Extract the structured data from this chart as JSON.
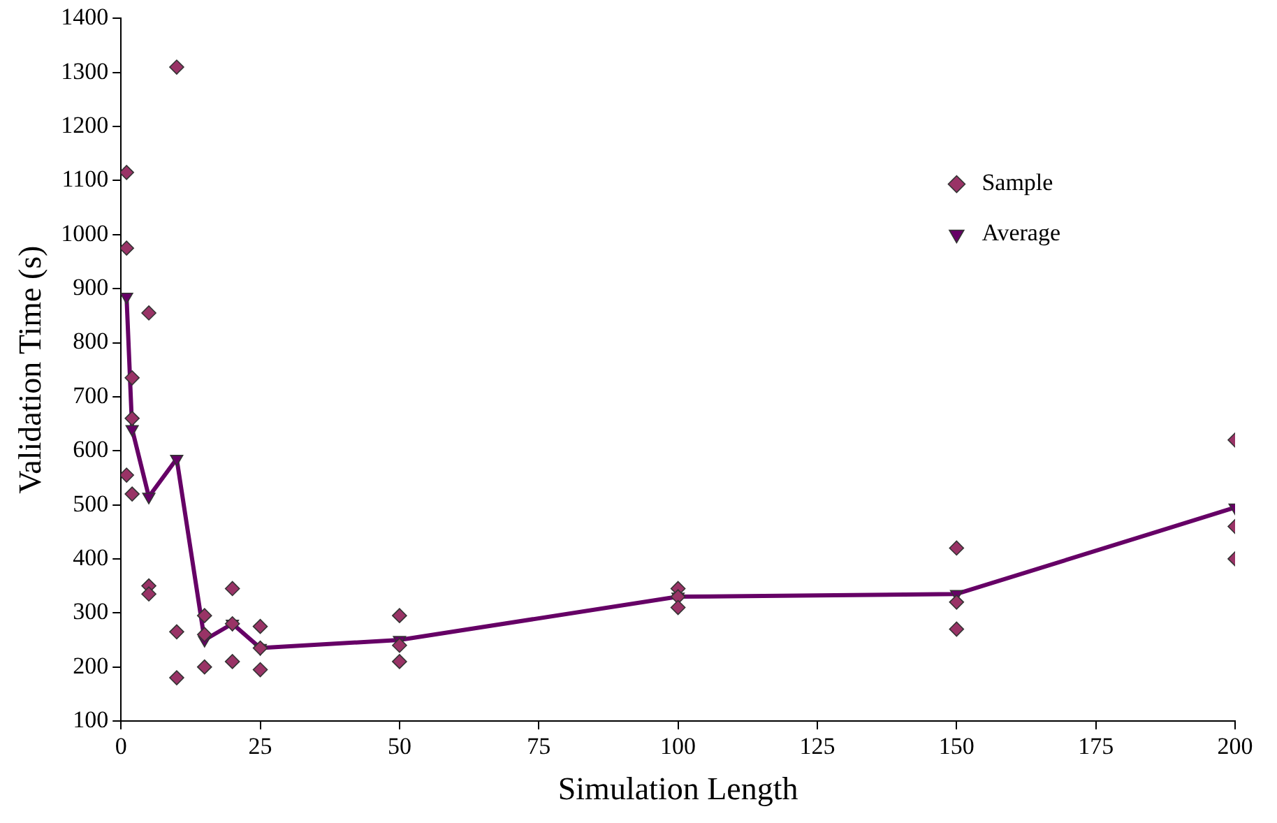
{
  "chart_data": {
    "type": "scatter",
    "xlabel": "Simulation Length",
    "ylabel": "Validation Time (s)",
    "xlim": [
      0,
      200
    ],
    "xticks": [
      0,
      25,
      50,
      75,
      100,
      125,
      150,
      175,
      200
    ],
    "ylim": [
      100,
      1400
    ],
    "yticks": [
      100,
      200,
      300,
      400,
      500,
      600,
      700,
      800,
      900,
      1000,
      1100,
      1200,
      1300,
      1400
    ],
    "grid": false,
    "legend": "top right",
    "series": [
      {
        "name": "Sample",
        "type": "scatter",
        "marker": "diamond",
        "color": "#993366",
        "x": [
          1,
          1,
          1,
          2,
          2,
          2,
          5,
          5,
          5,
          10,
          10,
          10,
          15,
          15,
          15,
          20,
          20,
          20,
          25,
          25,
          25,
          50,
          50,
          50,
          100,
          100,
          100,
          150,
          150,
          150,
          200,
          200,
          200
        ],
        "values": [
          1115,
          975,
          555,
          735,
          660,
          520,
          855,
          350,
          335,
          1310,
          265,
          180,
          295,
          260,
          200,
          345,
          280,
          210,
          275,
          235,
          195,
          295,
          240,
          210,
          345,
          330,
          310,
          420,
          320,
          270,
          620,
          460,
          400
        ]
      },
      {
        "name": "Average",
        "type": "line",
        "marker": "triangle",
        "color": "#660066",
        "x": [
          1,
          2,
          5,
          10,
          15,
          20,
          25,
          50,
          100,
          150,
          200
        ],
        "values": [
          885,
          640,
          515,
          585,
          250,
          280,
          235,
          250,
          330,
          335,
          495
        ]
      }
    ]
  }
}
